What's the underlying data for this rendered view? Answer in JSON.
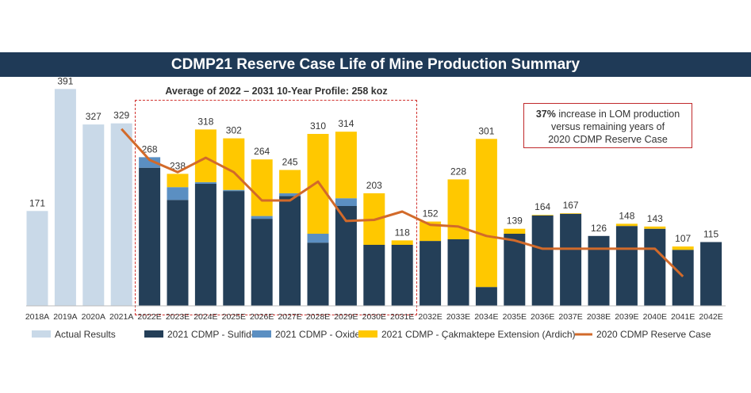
{
  "title": "CDMP21 Reserve Case Life of Mine Production Summary",
  "average_label": "Average of 2022 – 2031 10-Year Profile: 258 koz",
  "note": {
    "bold": "37%",
    "line1": " increase in LOM production",
    "line2": "versus remaining years of",
    "line3": "2020 CDMP Reserve Case"
  },
  "colors": {
    "actual": "#c9d9e8",
    "sulfides": "#243f58",
    "oxides": "#5b8fc2",
    "ardich": "#ffc800",
    "reserve2020": "#d26a2a",
    "title_bar": "#1f3a57"
  },
  "chart_data": {
    "type": "bar",
    "stacked": true,
    "categories": [
      "2018A",
      "2019A",
      "2020A",
      "2021A",
      "2022E",
      "2023E",
      "2024E",
      "2025E",
      "2026E",
      "2027E",
      "2028E",
      "2029E",
      "2030E",
      "2031E",
      "2032E",
      "2033E",
      "2034E",
      "2035E",
      "2036E",
      "2037E",
      "2038E",
      "2039E",
      "2040E",
      "2041E",
      "2042E"
    ],
    "totals": [
      171,
      391,
      327,
      329,
      268,
      238,
      318,
      302,
      264,
      245,
      310,
      314,
      203,
      118,
      152,
      228,
      301,
      139,
      164,
      167,
      126,
      148,
      143,
      107,
      115
    ],
    "series": [
      {
        "name": "Actual Results",
        "values": [
          171,
          391,
          327,
          329,
          0,
          0,
          0,
          0,
          0,
          0,
          0,
          0,
          0,
          0,
          0,
          0,
          0,
          0,
          0,
          0,
          0,
          0,
          0,
          0,
          0
        ]
      },
      {
        "name": "2021 CDMP - Sulfides",
        "values": [
          0,
          0,
          0,
          0,
          249,
          191,
          220,
          207,
          157,
          198,
          114,
          180,
          110,
          110,
          117,
          120,
          34,
          130,
          163,
          166,
          126,
          144,
          139,
          101,
          115
        ]
      },
      {
        "name": "2021 CDMP - Oxides",
        "values": [
          0,
          0,
          0,
          0,
          19,
          23,
          3,
          2,
          5,
          5,
          16,
          14,
          0,
          0,
          0,
          0,
          0,
          0,
          0,
          0,
          0,
          0,
          0,
          0,
          0
        ]
      },
      {
        "name": "2021 CDMP - Çakmaktepe Extension (Ardich)",
        "values": [
          0,
          0,
          0,
          0,
          0,
          24,
          95,
          93,
          102,
          42,
          180,
          120,
          93,
          8,
          35,
          108,
          267,
          9,
          1,
          1,
          0,
          4,
          4,
          6,
          0
        ]
      },
      {
        "name": "2020 CDMP Reserve Case",
        "type": "line",
        "values": [
          null,
          null,
          null,
          319,
          263,
          241,
          267,
          241,
          190,
          190,
          224,
          153,
          155,
          170,
          146,
          143,
          126,
          118,
          103,
          103,
          103,
          103,
          103,
          53,
          null
        ]
      }
    ],
    "ylim": [
      0,
      400
    ],
    "grid": false,
    "legend": "bottom"
  }
}
